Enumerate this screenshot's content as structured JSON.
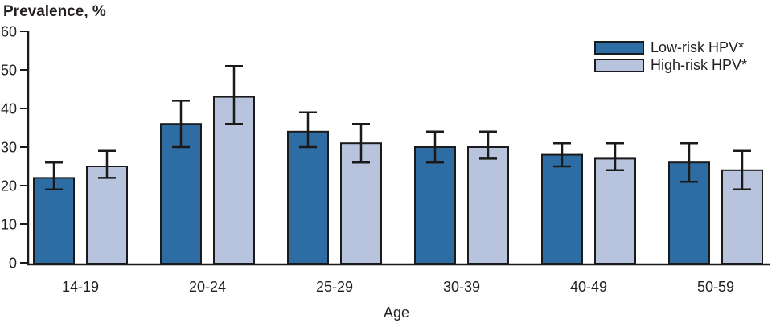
{
  "figure": {
    "y_axis_title": "Prevalence, %",
    "x_axis_title": "Age"
  },
  "legend": {
    "items": [
      {
        "label": "Low-risk HPV*",
        "color": "#2e6da4"
      },
      {
        "label": "High-risk HPV*",
        "color": "#b8c4de"
      }
    ]
  },
  "chart_data": {
    "type": "bar",
    "title": "",
    "xlabel": "Age",
    "ylabel": "Prevalence, %",
    "categories": [
      "14-19",
      "20-24",
      "25-29",
      "30-39",
      "40-49",
      "50-59"
    ],
    "series": [
      {
        "name": "Low-risk HPV*",
        "color": "#2e6da4",
        "values": [
          22,
          36,
          34,
          30,
          28,
          26
        ],
        "ci_low": [
          19,
          30,
          30,
          26,
          25,
          21
        ],
        "ci_high": [
          26,
          42,
          39,
          34,
          31,
          31
        ]
      },
      {
        "name": "High-risk HPV*",
        "color": "#b8c4de",
        "values": [
          25,
          43,
          31,
          30,
          27,
          24
        ],
        "ci_low": [
          22,
          36,
          26,
          27,
          24,
          19
        ],
        "ci_high": [
          29,
          51,
          36,
          34,
          31,
          29
        ]
      }
    ],
    "ylim": [
      0,
      60
    ],
    "ytick_step": 10,
    "grid": false,
    "error_bars": true,
    "legend_position": "top-right",
    "bar_outline_color": "#1a1a1a",
    "axis_color": "#1a1a1a"
  }
}
